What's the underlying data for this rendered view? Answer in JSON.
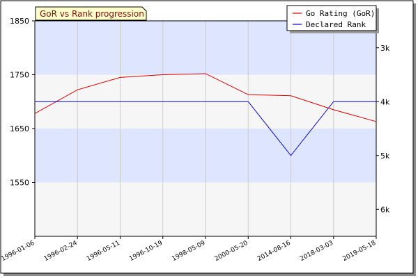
{
  "chart_data": {
    "type": "line",
    "title": "GoR vs Rank progression",
    "x": [
      "1996-01-06",
      "1996-02-24",
      "1996-05-11",
      "1996-10-19",
      "1998-05-09",
      "2000-05-20",
      "2014-08-16",
      "2018-03-03",
      "2019-05-18"
    ],
    "series": [
      {
        "name": "Go Rating (GoR)",
        "color": "#dd0000",
        "axis": "left",
        "values": [
          1678,
          1722,
          1745,
          1750,
          1752,
          1713,
          1711,
          1685,
          1663
        ]
      },
      {
        "name": "Declared Rank",
        "color": "#0000cc",
        "axis": "right",
        "values": [
          "4k",
          "4k",
          "4k",
          "4k",
          "4k",
          "4k",
          "5k",
          "4k",
          "4k"
        ],
        "numeric_values": [
          4,
          4,
          4,
          4,
          4,
          4,
          5,
          4,
          4
        ]
      }
    ],
    "y_left": {
      "ticks": [
        1550,
        1650,
        1750,
        1850
      ],
      "range": [
        1450,
        1850
      ]
    },
    "y_right": {
      "ticks": [
        "3k",
        "4k",
        "5k",
        "6k"
      ],
      "tick_values": [
        3,
        4,
        5,
        6
      ],
      "range": [
        2.5,
        6.5
      ]
    },
    "background_bands": [
      "#dde5ff",
      "#f6f6f6"
    ],
    "grid": true,
    "legend": "top-right"
  }
}
